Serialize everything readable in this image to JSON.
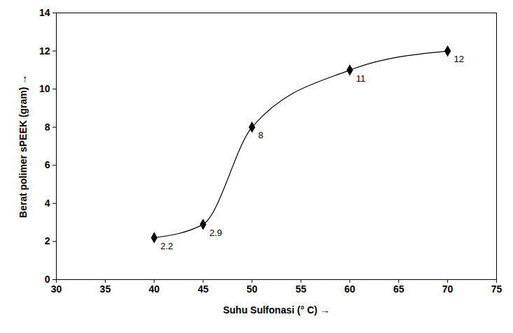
{
  "chart_data": {
    "type": "line",
    "x_label": "Suhu Sulfonasi (° C)",
    "y_label": "Berat polimer sPEEK (gram)",
    "x": [
      40,
      45,
      50,
      60,
      70
    ],
    "values": [
      2.2,
      2.9,
      8,
      11,
      12
    ],
    "color": "#000000",
    "marker": "diamond",
    "line_style": "smooth",
    "data_labels": true,
    "grid": false,
    "xlim": [
      30,
      75
    ],
    "xticks": [
      30,
      35,
      40,
      45,
      50,
      55,
      60,
      65,
      70,
      75
    ],
    "ylim": [
      0,
      14
    ],
    "yticks": [
      0,
      2,
      4,
      6,
      8,
      10,
      12,
      14
    ]
  }
}
